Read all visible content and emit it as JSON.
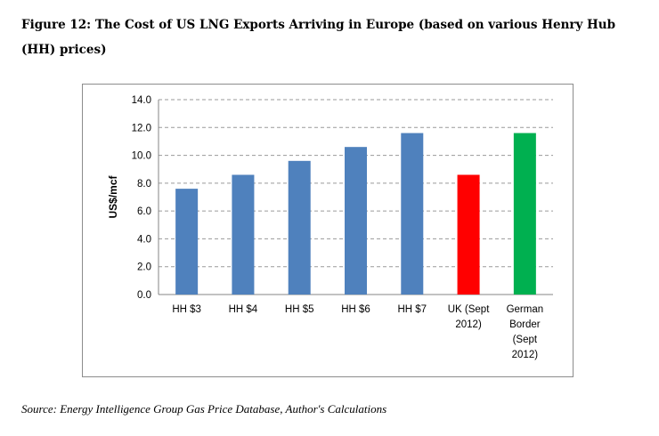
{
  "figure": {
    "title": "Figure 12: The Cost of US LNG Exports Arriving in Europe (based on various Henry Hub (HH) prices)",
    "source": "Source: Energy Intelligence Group Gas Price Database, Author's Calculations"
  },
  "chart_data": {
    "type": "bar",
    "categories": [
      "HH $3",
      "HH $4",
      "HH $5",
      "HH $6",
      "HH $7",
      "UK (Sept 2012)",
      "German Border (Sept 2012)"
    ],
    "category_label_lines": [
      [
        "HH $3"
      ],
      [
        "HH $4"
      ],
      [
        "HH $5"
      ],
      [
        "HH $6"
      ],
      [
        "HH $7"
      ],
      [
        "UK (Sept",
        "2012)"
      ],
      [
        "German",
        "Border",
        "(Sept",
        "2012)"
      ]
    ],
    "values": [
      7.6,
      8.6,
      9.6,
      10.6,
      11.6,
      8.6,
      11.6
    ],
    "bar_colors": [
      "#4f81bd",
      "#4f81bd",
      "#4f81bd",
      "#4f81bd",
      "#4f81bd",
      "#ff0000",
      "#00b050"
    ],
    "ylabel": "US$/mcf",
    "ylim": [
      0,
      14
    ],
    "yticks": [
      "0.0",
      "2.0",
      "4.0",
      "6.0",
      "8.0",
      "10.0",
      "12.0",
      "14.0"
    ],
    "grid": true,
    "legend": "none"
  }
}
